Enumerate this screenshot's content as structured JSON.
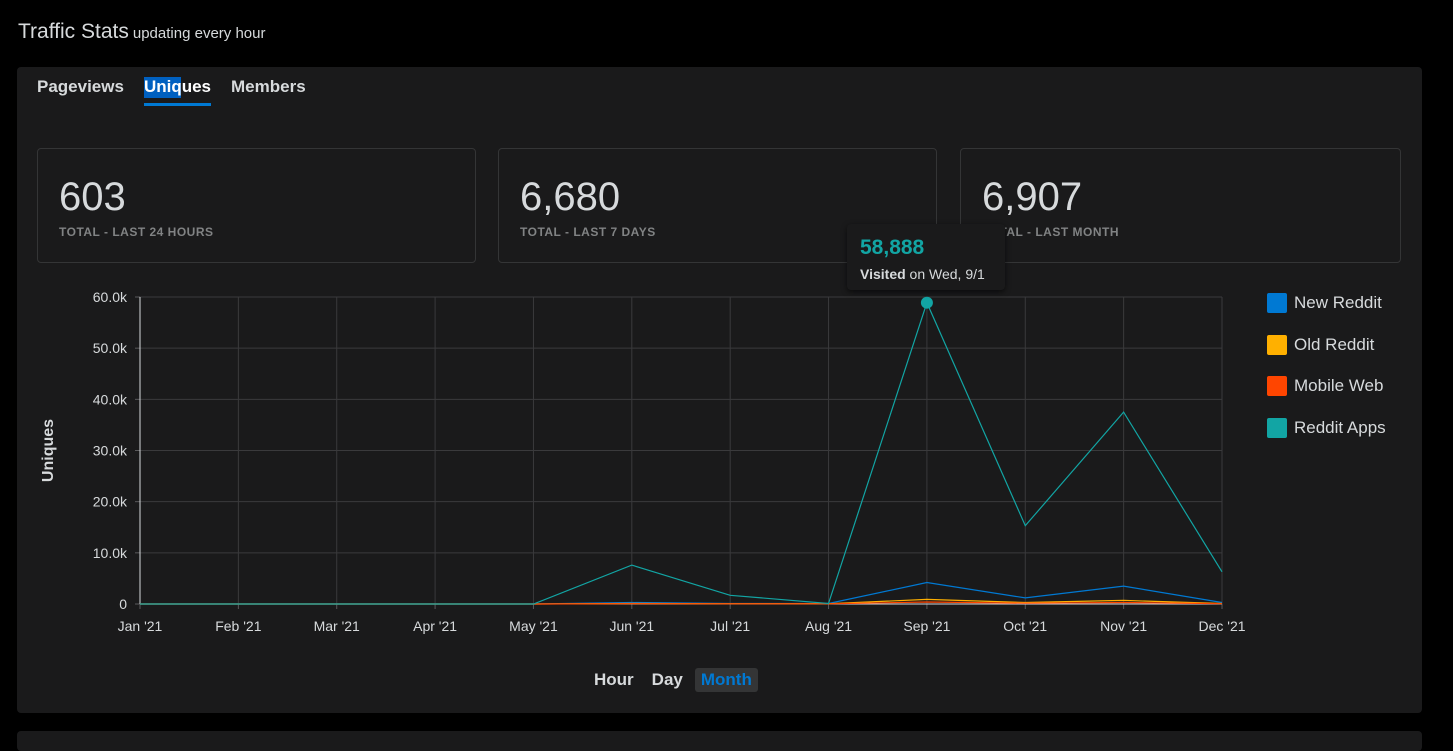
{
  "header": {
    "title": "Traffic Stats",
    "subtitle": "updating every hour"
  },
  "tabs": [
    {
      "label": "Pageviews",
      "active": false
    },
    {
      "label": "Uniques",
      "active": true
    },
    {
      "label": "Members",
      "active": false
    }
  ],
  "stats": [
    {
      "value": "603",
      "label": "TOTAL - LAST 24 HOURS"
    },
    {
      "value": "6,680",
      "label": "TOTAL - LAST 7 DAYS"
    },
    {
      "value": "6,907",
      "label": "TOTAL - LAST MONTH"
    }
  ],
  "tooltip": {
    "value": "58,888",
    "bold": "Visited",
    "rest": "on Wed, 9/1"
  },
  "ranges": [
    {
      "label": "Hour",
      "active": false
    },
    {
      "label": "Day",
      "active": false
    },
    {
      "label": "Month",
      "active": true
    }
  ],
  "chart_data": {
    "type": "line",
    "ylabel": "Uniques",
    "xlabel": "",
    "ylim": [
      0,
      60000
    ],
    "yticks": [
      0,
      10000,
      20000,
      30000,
      40000,
      50000,
      60000
    ],
    "ytick_labels": [
      "0",
      "10.0k",
      "20.0k",
      "30.0k",
      "40.0k",
      "50.0k",
      "60.0k"
    ],
    "categories": [
      "Jan '21",
      "Feb '21",
      "Mar '21",
      "Apr '21",
      "May '21",
      "Jun '21",
      "Jul '21",
      "Aug '21",
      "Sep '21",
      "Oct '21",
      "Nov '21",
      "Dec '21"
    ],
    "grid": true,
    "legend_position": "right",
    "series": [
      {
        "name": "New Reddit",
        "color": "#0079d3",
        "values": [
          0,
          0,
          0,
          0,
          0,
          300,
          100,
          100,
          4200,
          1200,
          3500,
          300
        ]
      },
      {
        "name": "Old Reddit",
        "color": "#ffb000",
        "values": [
          0,
          0,
          0,
          0,
          0,
          100,
          50,
          50,
          900,
          300,
          700,
          100
        ]
      },
      {
        "name": "Mobile Web",
        "color": "#ff4500",
        "values": [
          0,
          0,
          0,
          0,
          0,
          50,
          30,
          30,
          400,
          150,
          300,
          50
        ]
      },
      {
        "name": "Reddit Apps",
        "color": "#12a5a4",
        "values": [
          0,
          0,
          0,
          0,
          0,
          7600,
          1700,
          100,
          58888,
          15300,
          37500,
          6300
        ]
      }
    ],
    "highlight": {
      "series": "Reddit Apps",
      "category": "Sep '21",
      "value": 58888
    }
  }
}
